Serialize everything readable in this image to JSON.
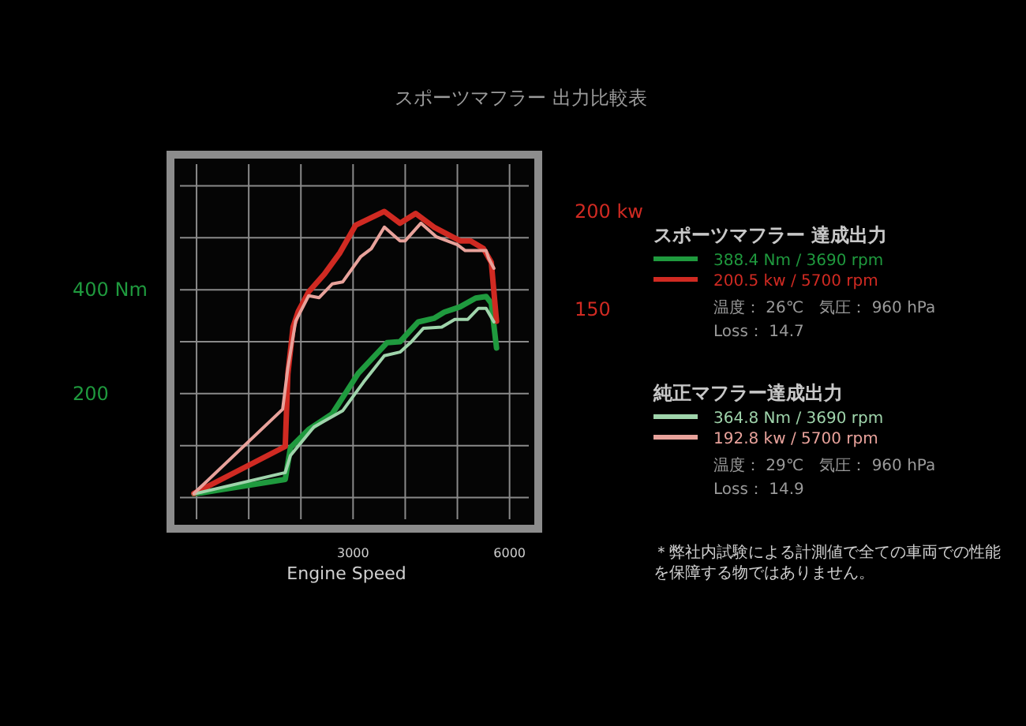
{
  "chart_data": {
    "type": "line",
    "title": "スポーツマフラー 出力比較表",
    "xlabel": "Engine Speed",
    "xlim": [
      -500,
      6550
    ],
    "xticks": [
      {
        "value": 0,
        "label": null
      },
      {
        "value": 1000,
        "label": null
      },
      {
        "value": 2000,
        "label": null
      },
      3000,
      {
        "value": 4000,
        "label": null
      },
      {
        "value": 5000,
        "label": null
      },
      6000
    ],
    "ylim": [
      -60,
      660
    ],
    "yticks": [
      {
        "value": 0,
        "label": null
      },
      {
        "value": 100,
        "label": null
      },
      200,
      {
        "value": 300,
        "label": null
      },
      {
        "value": 400,
        "label": "400 Nm"
      },
      {
        "value": 500,
        "label": null
      },
      {
        "value": 600,
        "label": null
      }
    ],
    "y2lim": [
      38,
      229
    ],
    "y2ticks": [
      150,
      {
        "value": 200,
        "label": "200 kw"
      }
    ],
    "grid": true,
    "legend": "right",
    "marker": "none",
    "line_style": "solid",
    "series": [
      {
        "name": "388.4 Nm / 3690 rpm",
        "color": "#1f9a3e",
        "x": [
          -50,
          1700,
          1800,
          2150,
          2600,
          3100,
          3650,
          3900,
          4250,
          4550,
          4750,
          5050,
          5350,
          5550,
          5650,
          5750
        ],
        "values": [
          7,
          35,
          96,
          131,
          161,
          239,
          298,
          300,
          338,
          345,
          357,
          367,
          384,
          387,
          374,
          288
        ]
      },
      {
        "name": "200.5 kw / 5700 rpm",
        "color": "#d02a22",
        "axis": "y2",
        "x": [
          -50,
          1700,
          1750,
          1850,
          1950,
          2150,
          2450,
          2750,
          3050,
          3600,
          3900,
          4200,
          4550,
          5050,
          5250,
          5500,
          5650,
          5750
        ],
        "values": [
          56,
          80,
          117,
          141,
          149,
          159,
          168,
          179,
          193,
          200,
          194,
          199,
          192,
          185,
          185,
          181,
          174,
          144
        ]
      },
      {
        "name": "364.8 Nm / 3690 rpm",
        "color": "#9fd4ab",
        "x": [
          -50,
          1700,
          1800,
          2250,
          2800,
          3200,
          3600,
          3900,
          4100,
          4350,
          4700,
          4950,
          5200,
          5400,
          5550,
          5700
        ],
        "values": [
          7,
          48,
          81,
          136,
          167,
          222,
          273,
          280,
          298,
          326,
          328,
          343,
          343,
          364,
          364,
          338
        ]
      },
      {
        "name": "192.8 kw / 5700 rpm",
        "color": "#e8a29b",
        "axis": "y2",
        "x": [
          -50,
          1650,
          1750,
          1900,
          2150,
          2350,
          2600,
          2800,
          3150,
          3350,
          3600,
          3900,
          4000,
          4300,
          4600,
          5000,
          5150,
          5550,
          5600,
          5700
        ],
        "values": [
          56,
          99,
          120,
          144,
          157,
          156,
          163,
          164,
          177,
          181,
          192,
          185,
          185,
          194,
          187,
          183,
          180,
          180,
          176,
          171
        ]
      }
    ],
    "annotations": [
      "スポーツマフラー 達成出力",
      "温度： 26℃　気圧： 960 hPa",
      "Loss： 14.7",
      "純正マフラー達成出力",
      "温度： 29℃　気圧： 960 hPa",
      "Loss： 14.9",
      "＊弊社内試験による計測値で全ての車両での性能を保障する物ではありません。"
    ]
  }
}
